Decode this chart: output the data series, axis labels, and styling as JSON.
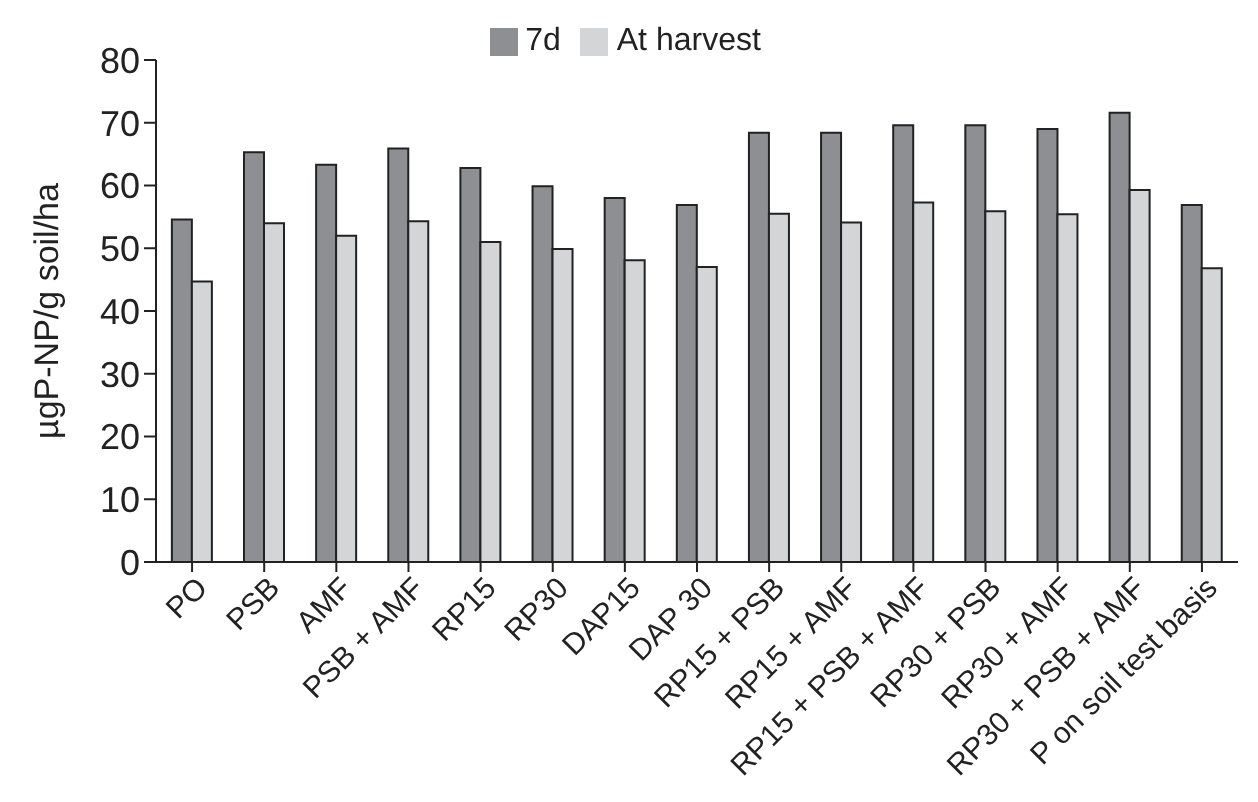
{
  "chart_data": {
    "type": "bar",
    "ylabel": "µgP-NP/g soil/ha",
    "categories": [
      "PO",
      "PSB",
      "AMF",
      "PSB + AMF",
      "RP15",
      "RP30",
      "DAP15",
      "DAP 30",
      "RP15 + PSB",
      "RP15 + AMF",
      "RP15 + PSB + AMF",
      "RP30 + PSB",
      "RP30 + AMF",
      "RP30 + PSB + AMF",
      "P on soil test basis"
    ],
    "series": [
      {
        "name": "7d",
        "color": "#8e8f92",
        "values": [
          54.6,
          65.3,
          63.3,
          65.9,
          62.8,
          59.9,
          58.0,
          56.9,
          68.4,
          68.4,
          69.6,
          69.6,
          69.0,
          71.6,
          56.9
        ]
      },
      {
        "name": "At harvest",
        "color": "#d4d5d7",
        "values": [
          44.7,
          54.0,
          52.0,
          54.3,
          51.0,
          49.9,
          48.1,
          47.0,
          55.5,
          54.1,
          57.3,
          55.9,
          55.4,
          59.3,
          46.8
        ]
      }
    ],
    "ylim": [
      0,
      80
    ],
    "yticks": [
      0,
      10,
      20,
      30,
      40,
      50,
      60,
      70,
      80
    ],
    "legend": "top",
    "grid": false
  }
}
